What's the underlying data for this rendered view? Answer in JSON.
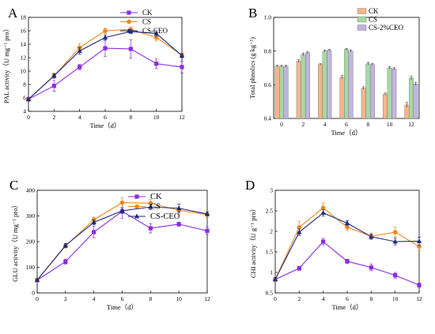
{
  "chart_data": [
    {
      "panel": "A",
      "type": "line",
      "xlabel": "Time（d）",
      "ylabel": "PAL activity（U mg⁻¹ pro）",
      "x": [
        0,
        2,
        4,
        6,
        8,
        10,
        12
      ],
      "xlim": [
        0,
        12
      ],
      "ylim": [
        4,
        18
      ],
      "xticks": [
        0,
        2,
        4,
        6,
        8,
        10,
        12
      ],
      "yticks": [
        4,
        6,
        8,
        10,
        12,
        14,
        16,
        18
      ],
      "legend_position": "top-right",
      "series": [
        {
          "name": "CK",
          "color": "#8b2be2",
          "marker": "square",
          "values": [
            5.8,
            7.8,
            10.6,
            13.4,
            13.3,
            11.1,
            10.6
          ],
          "errors": [
            0.3,
            0.8,
            0.4,
            1.2,
            1.4,
            0.7,
            0.9
          ]
        },
        {
          "name": "CS",
          "color": "#f0861b",
          "marker": "circle",
          "values": [
            5.8,
            9.3,
            13.5,
            16.0,
            16.2,
            15.0,
            12.4
          ],
          "errors": [
            0.2,
            0.4,
            0.6,
            0.4,
            0.4,
            0.5,
            0.4
          ]
        },
        {
          "name": "CS-CEO",
          "color": "#1f2a7a",
          "marker": "triangle",
          "values": [
            5.8,
            9.3,
            13.0,
            15.0,
            15.9,
            15.6,
            12.3
          ],
          "errors": [
            0.2,
            0.3,
            0.5,
            0.4,
            0.3,
            0.4,
            0.3
          ]
        }
      ]
    },
    {
      "panel": "B",
      "type": "bar",
      "xlabel": "Time（d）",
      "ylabel": "Total phnolics (g kg⁻¹)",
      "categories": [
        "0",
        "2",
        "4",
        "6",
        "8",
        "10",
        "12"
      ],
      "ylim": [
        0.4,
        1.0
      ],
      "yticks": [
        0.4,
        0.6,
        0.8,
        1.0
      ],
      "legend_position": "top-right",
      "series": [
        {
          "name": "CK",
          "color": "#f6b48b",
          "values": [
            0.71,
            0.74,
            0.72,
            0.645,
            0.58,
            0.545,
            0.48
          ],
          "errors": [
            0.005,
            0.008,
            0.005,
            0.01,
            0.008,
            0.006,
            0.015
          ]
        },
        {
          "name": "CS",
          "color": "#a7d8a3",
          "values": [
            0.71,
            0.78,
            0.8,
            0.81,
            0.725,
            0.7,
            0.64
          ],
          "errors": [
            0.005,
            0.008,
            0.006,
            0.006,
            0.008,
            0.007,
            0.012
          ]
        },
        {
          "name": "CS-2%CEO",
          "color": "#c2b4e0",
          "values": [
            0.71,
            0.79,
            0.805,
            0.8,
            0.72,
            0.695,
            0.605
          ],
          "errors": [
            0.005,
            0.006,
            0.005,
            0.006,
            0.007,
            0.006,
            0.01
          ]
        }
      ]
    },
    {
      "panel": "C",
      "type": "line",
      "xlabel": "Time（d）",
      "ylabel": "GLU activity（U mg⁻¹ pro）",
      "x": [
        0,
        2,
        4,
        6,
        8,
        10,
        12
      ],
      "xlim": [
        0,
        12
      ],
      "ylim": [
        0,
        400
      ],
      "xticks": [
        0,
        2,
        4,
        6,
        8,
        10,
        12
      ],
      "yticks": [
        0,
        100,
        200,
        300,
        400
      ],
      "legend_position": "top-right",
      "series": [
        {
          "name": "CK",
          "color": "#8b2be2",
          "marker": "square",
          "values": [
            50,
            122,
            237,
            318,
            252,
            268,
            242
          ],
          "errors": [
            4,
            10,
            22,
            28,
            18,
            8,
            14
          ]
        },
        {
          "name": "CS",
          "color": "#f0861b",
          "marker": "circle",
          "values": [
            50,
            183,
            285,
            352,
            350,
            322,
            305
          ],
          "errors": [
            4,
            8,
            10,
            18,
            14,
            14,
            10
          ]
        },
        {
          "name": "CS-CEO",
          "color": "#1f2a7a",
          "marker": "triangle",
          "values": [
            50,
            185,
            275,
            320,
            335,
            330,
            308
          ],
          "errors": [
            4,
            8,
            10,
            10,
            10,
            16,
            8
          ]
        }
      ]
    },
    {
      "panel": "D",
      "type": "line",
      "xlabel": "Time（d）",
      "ylabel": "CHI activity（U g⁻¹ pro）",
      "x": [
        0,
        2,
        4,
        6,
        8,
        10,
        12
      ],
      "xlim": [
        0,
        12
      ],
      "ylim": [
        0.5,
        3.0
      ],
      "xticks": [
        0,
        2,
        4,
        6,
        8,
        10,
        12
      ],
      "yticks": [
        0.5,
        1.0,
        1.5,
        2.0,
        2.5,
        3.0
      ],
      "legend_position": "none",
      "series": [
        {
          "name": "CK",
          "color": "#8b2be2",
          "marker": "square",
          "values": [
            0.83,
            1.1,
            1.75,
            1.27,
            1.12,
            0.93,
            0.69
          ],
          "errors": [
            0.04,
            0.05,
            0.08,
            0.05,
            0.08,
            0.07,
            0.05
          ]
        },
        {
          "name": "CS",
          "color": "#f0861b",
          "marker": "circle",
          "values": [
            0.83,
            2.1,
            2.57,
            2.1,
            1.88,
            1.98,
            1.63
          ],
          "errors": [
            0.04,
            0.15,
            0.12,
            0.08,
            0.08,
            0.12,
            0.1
          ]
        },
        {
          "name": "CS-CEO",
          "color": "#1f2a7a",
          "marker": "triangle",
          "values": [
            0.83,
            1.98,
            2.45,
            2.2,
            1.87,
            1.75,
            1.76
          ],
          "errors": [
            0.04,
            0.08,
            0.08,
            0.06,
            0.06,
            0.08,
            0.1
          ]
        }
      ]
    }
  ]
}
